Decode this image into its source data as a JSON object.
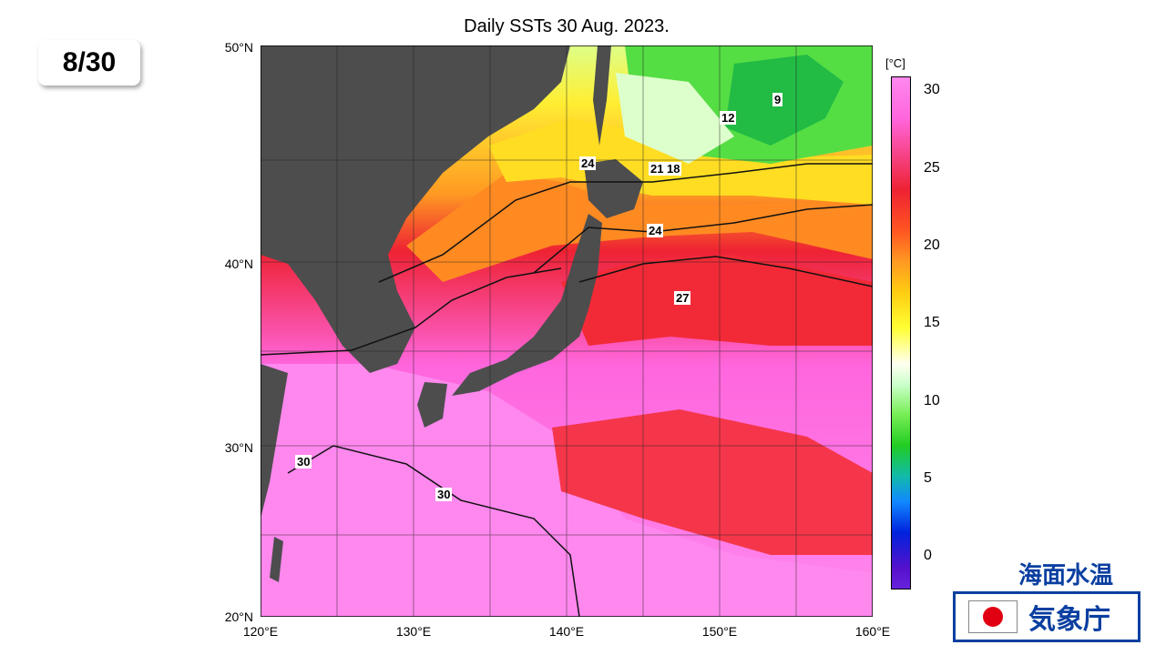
{
  "date_badge": "8/30",
  "map": {
    "title": "Daily SSTs 30 Aug. 2023.",
    "lat_labels": [
      "50°N",
      "40°N",
      "30°N",
      "20°N"
    ],
    "lon_labels": [
      "120°E",
      "130°E",
      "140°E",
      "150°E",
      "160°E"
    ],
    "contour_labels": [
      "9",
      "12",
      "21",
      "18",
      "24",
      "24",
      "27",
      "30",
      "30"
    ]
  },
  "colorbar": {
    "unit": "[°C]",
    "ticks": [
      "30",
      "25",
      "20",
      "15",
      "10",
      "5",
      "0"
    ]
  },
  "jma": {
    "subtitle": "海面水温",
    "name": "気象庁"
  },
  "colors": {
    "land": "#4d4d4d",
    "warm_pink": "#ff88ee",
    "red": "#ee2233",
    "orange": "#ff7722",
    "yellow": "#ffee33",
    "green": "#55dd44",
    "jma_blue": "#0a3fa0"
  }
}
